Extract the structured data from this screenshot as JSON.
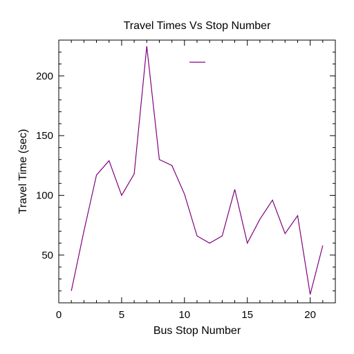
{
  "chart_data": {
    "type": "line",
    "title": "Travel Times Vs Stop Number",
    "xlabel": "Bus Stop Number",
    "ylabel": "Travel Time (sec)",
    "xlim": [
      0,
      22
    ],
    "ylim": [
      10,
      230
    ],
    "xticks": [
      0,
      5,
      10,
      15,
      20
    ],
    "yticks": [
      50,
      100,
      150,
      200
    ],
    "grid": false,
    "legend": "top-center",
    "colors": {
      "series": "#800080",
      "axis": "#000000",
      "background": "#ffffff"
    },
    "series": [
      {
        "x": [
          1,
          2,
          3,
          4,
          5,
          6,
          7,
          8,
          9,
          10,
          11,
          12,
          13,
          14,
          15,
          16,
          17,
          18,
          19,
          20,
          21
        ],
        "values": [
          20,
          70,
          117,
          129,
          100,
          118,
          225,
          130,
          125,
          101,
          66,
          60,
          66,
          105,
          60,
          80,
          96,
          68,
          83,
          17,
          58
        ]
      }
    ]
  }
}
